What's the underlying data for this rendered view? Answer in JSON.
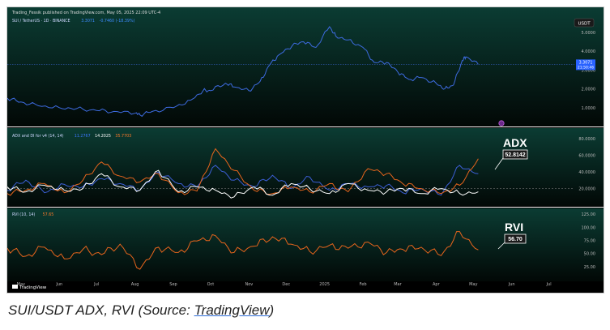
{
  "header": {
    "publisher_line": "Trading_Fessik published on TradingView.com, May 05, 2025 22:09 UTC-4",
    "currency_badge": "USDT",
    "watermark": "TradingView"
  },
  "caption": {
    "prefix": "SUI/USDT ADX, RVI (Source: ",
    "link_text": "TradingView",
    "suffix": ")"
  },
  "colors": {
    "background": "#000000",
    "price_line": "#3d6be0",
    "plus_di": "#3c5fd6",
    "minus_di": "#e8651c",
    "adx_line": "#ffffff",
    "rvi_line": "#e8651c",
    "accent_teal": "#0d4a3c"
  },
  "chart_data": [
    {
      "type": "line",
      "title": "SUI / TetherUS · 1D · BINANCE",
      "legend_values": [
        "3.3071",
        "-0.7460 (-18.39%)"
      ],
      "series": [
        {
          "name": "SUI / TetherUS",
          "x": [
            "2024-04-20",
            "2024-05-01",
            "2024-05-15",
            "2024-06-01",
            "2024-06-15",
            "2024-07-01",
            "2024-07-15",
            "2024-08-01",
            "2024-08-05",
            "2024-08-15",
            "2024-09-01",
            "2024-09-15",
            "2024-09-25",
            "2024-10-01",
            "2024-10-13",
            "2024-10-20",
            "2024-11-01",
            "2024-11-10",
            "2024-11-18",
            "2024-11-25",
            "2024-12-06",
            "2024-12-15",
            "2024-12-25",
            "2025-01-05",
            "2025-01-10",
            "2025-01-20",
            "2025-02-01",
            "2025-02-10",
            "2025-02-20",
            "2025-03-01",
            "2025-03-10",
            "2025-03-20",
            "2025-04-01",
            "2025-04-08",
            "2025-04-15",
            "2025-04-22",
            "2025-04-25",
            "2025-05-05"
          ],
          "values": [
            1.5,
            1.3,
            1.1,
            1.0,
            0.95,
            0.85,
            0.8,
            0.7,
            0.62,
            0.8,
            1.0,
            1.4,
            1.9,
            1.9,
            2.3,
            2.1,
            1.9,
            2.4,
            3.3,
            3.8,
            4.3,
            4.5,
            4.2,
            5.3,
            4.8,
            4.6,
            4.2,
            3.4,
            3.4,
            2.9,
            2.5,
            2.6,
            2.3,
            2.0,
            2.2,
            3.5,
            3.7,
            3.3
          ]
        }
      ],
      "y_ticks": [
        "5.0000",
        "4.0000",
        "3.0000",
        "2.0000",
        "1.0000"
      ],
      "last_price_label": "3.3071",
      "countdown_label": "21:50:46",
      "ylim": [
        0.3,
        5.9
      ]
    },
    {
      "type": "line",
      "title": "ADX and DI for v4 (14, 14)",
      "legend_values": [
        "11.2767",
        "14.2025",
        "35.7703"
      ],
      "annotation": "ADX",
      "value_box": "52.8142",
      "y_ticks": [
        "80.0000",
        "60.0000",
        "40.0000",
        "20.0000"
      ],
      "ylim": [
        0,
        90
      ],
      "x": [
        "2024-04-20",
        "2024-05-05",
        "2024-05-20",
        "2024-06-05",
        "2024-06-20",
        "2024-07-05",
        "2024-07-20",
        "2024-08-05",
        "2024-08-20",
        "2024-09-05",
        "2024-09-20",
        "2024-10-05",
        "2024-10-20",
        "2024-11-05",
        "2024-11-20",
        "2024-12-05",
        "2024-12-20",
        "2025-01-05",
        "2025-01-20",
        "2025-02-05",
        "2025-02-20",
        "2025-03-05",
        "2025-03-20",
        "2025-04-05",
        "2025-04-20",
        "2025-05-05"
      ],
      "series": [
        {
          "name": "+DI",
          "values": [
            18,
            30,
            15,
            25,
            22,
            32,
            26,
            18,
            40,
            26,
            22,
            48,
            30,
            22,
            36,
            20,
            34,
            18,
            26,
            22,
            24,
            15,
            20,
            12,
            48,
            38
          ]
        },
        {
          "name": "-DI",
          "values": [
            14,
            18,
            26,
            15,
            30,
            52,
            35,
            28,
            38,
            15,
            17,
            68,
            42,
            18,
            14,
            22,
            16,
            26,
            16,
            44,
            38,
            26,
            20,
            14,
            24,
            56
          ]
        },
        {
          "name": "ADX",
          "values": [
            22,
            16,
            24,
            18,
            20,
            38,
            22,
            18,
            42,
            16,
            22,
            18,
            10,
            22,
            12,
            26,
            20,
            14,
            26,
            18,
            16,
            20,
            14,
            20,
            14,
            16
          ]
        }
      ]
    },
    {
      "type": "line",
      "title": "RVI (10, 14)",
      "legend_values": [
        "57.65"
      ],
      "annotation": "RVI",
      "value_box": "56.70",
      "y_ticks": [
        "125.00",
        "100.00",
        "75.00",
        "50.00",
        "25.00"
      ],
      "ylim": [
        0,
        130
      ],
      "series": [
        {
          "name": "RVI",
          "x": [
            "2024-04-20",
            "2024-05-05",
            "2024-05-20",
            "2024-06-05",
            "2024-06-20",
            "2024-07-05",
            "2024-07-20",
            "2024-08-05",
            "2024-08-20",
            "2024-09-05",
            "2024-09-20",
            "2024-10-05",
            "2024-10-20",
            "2024-11-05",
            "2024-11-20",
            "2024-12-05",
            "2024-12-20",
            "2025-01-05",
            "2025-01-20",
            "2025-02-05",
            "2025-02-20",
            "2025-03-05",
            "2025-03-20",
            "2025-04-05",
            "2025-04-20",
            "2025-05-05"
          ],
          "values": [
            60,
            45,
            62,
            40,
            58,
            48,
            68,
            20,
            62,
            52,
            74,
            84,
            52,
            64,
            82,
            68,
            54,
            66,
            60,
            72,
            52,
            58,
            62,
            46,
            92,
            57
          ]
        }
      ]
    },
    {
      "type": "axis",
      "x_labels": [
        "May",
        "Jun",
        "Jul",
        "Aug",
        "Sep",
        "Oct",
        "Nov",
        "Dec",
        "2025",
        "Feb",
        "Mar",
        "Apr",
        "May",
        "Jun",
        "Jul"
      ]
    }
  ]
}
